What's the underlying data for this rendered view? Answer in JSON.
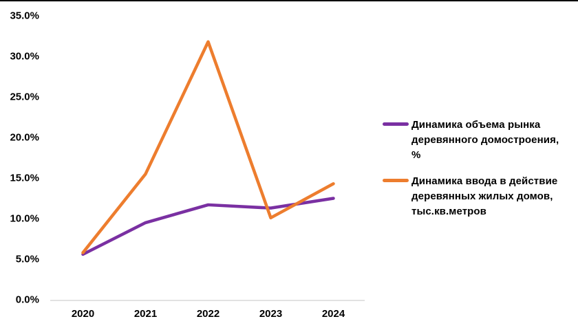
{
  "page": {
    "background": "#ffffff",
    "top_border_color": "#000000"
  },
  "chart_data": {
    "type": "line",
    "categories": [
      "2020",
      "2021",
      "2022",
      "2023",
      "2024"
    ],
    "series": [
      {
        "name": "Динамика объема рынка деревянного домостроения, %",
        "color": "#7A30A2",
        "values": [
          5.6,
          9.5,
          11.7,
          11.3,
          12.5
        ]
      },
      {
        "name": "Динамика ввода в действие деревянных жилых домов, тыс.кв.метров",
        "color": "#ED7D2E",
        "values": [
          5.8,
          15.5,
          31.8,
          10.1,
          14.3
        ]
      }
    ],
    "title": "",
    "xlabel": "",
    "ylabel": "",
    "ylim": [
      0,
      35
    ],
    "ytick_step": 5,
    "ytick_labels": [
      "0.0%",
      "5.0%",
      "10.0%",
      "15.0%",
      "20.0%",
      "25.0%",
      "30.0%",
      "35.0%"
    ],
    "grid": false,
    "legend_position": "right",
    "axis_line_color": "#D9D9D9",
    "tick_label_color": "#000000"
  }
}
